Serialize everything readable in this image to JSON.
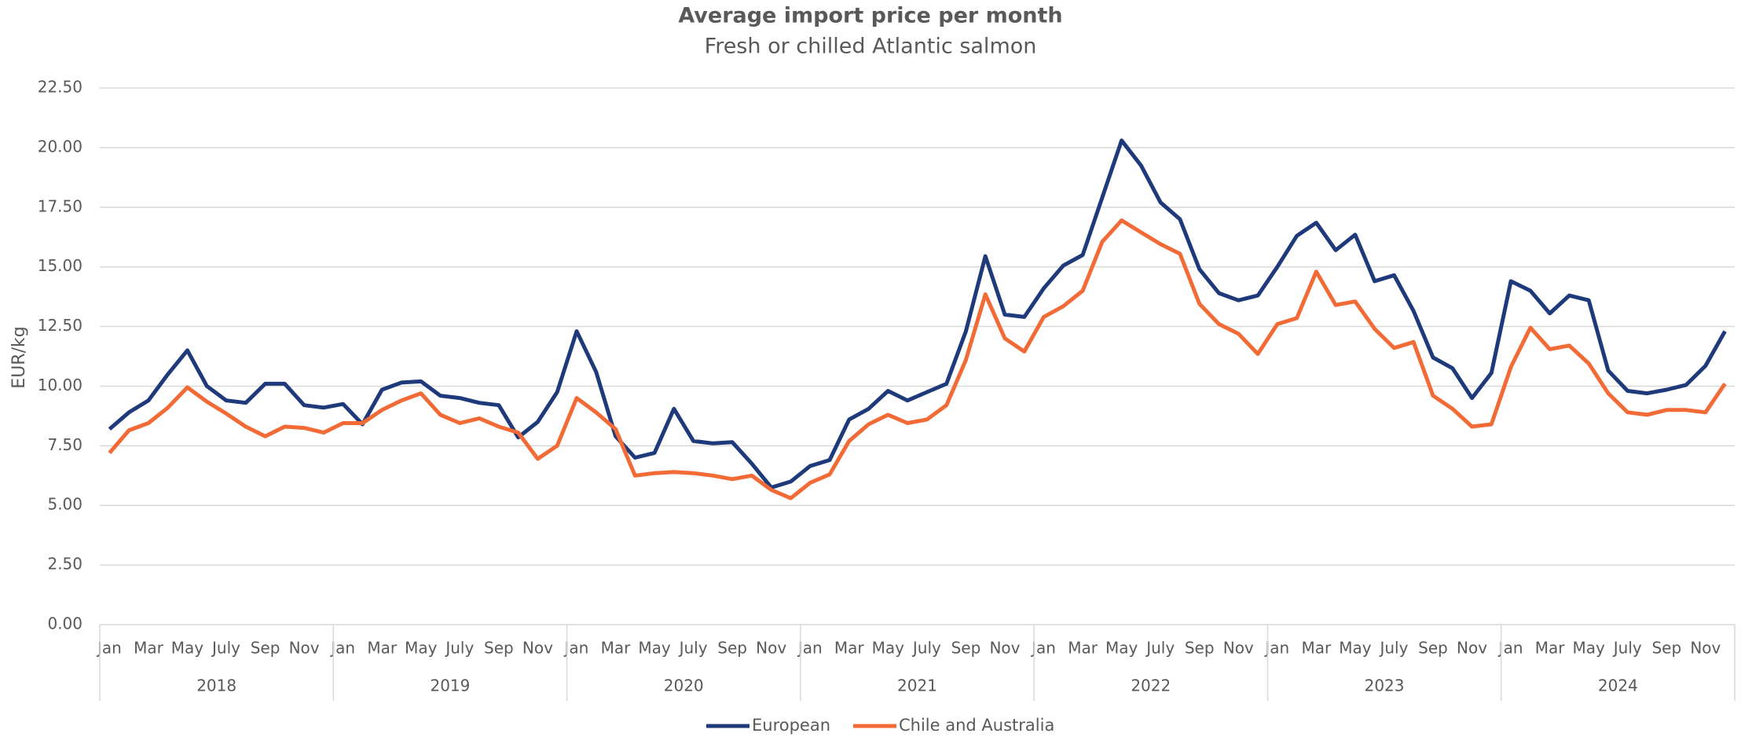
{
  "chart_data": {
    "type": "line",
    "title": "Average import price per month",
    "subtitle": "Fresh or chilled Atlantic salmon",
    "y_label": "EUR/kg",
    "categories": [
      "Jan",
      null,
      "Mar",
      null,
      "May",
      null,
      "July",
      null,
      "Sep",
      null,
      "Nov",
      null,
      "Jan",
      null,
      "Mar",
      null,
      "May",
      null,
      "July",
      null,
      "Sep",
      null,
      "Nov",
      null,
      "Jan",
      null,
      "Mar",
      null,
      "May",
      null,
      "July",
      null,
      "Sep",
      null,
      "Nov",
      null,
      "Jan",
      null,
      "Mar",
      null,
      "May",
      null,
      "July",
      null,
      "Sep",
      null,
      "Nov",
      null,
      "Jan",
      null,
      "Mar",
      null,
      "May",
      null,
      "July",
      null,
      "Sep",
      null,
      "Nov",
      null,
      "Jan",
      null,
      "Mar",
      null,
      "May",
      null,
      "July",
      null,
      "Sep",
      null,
      "Nov",
      null,
      "Jan",
      null,
      "Mar",
      null,
      "May",
      null,
      "July",
      null,
      "Sep",
      null,
      "Nov",
      null
    ],
    "years": [
      "2018",
      "2019",
      "2020",
      "2021",
      "2022",
      "2023",
      "2024"
    ],
    "series": [
      {
        "name": "European",
        "color": "#1f3a7a",
        "values": [
          8.2,
          8.9,
          9.4,
          10.5,
          11.5,
          10.0,
          9.4,
          9.3,
          10.1,
          10.1,
          9.2,
          9.1,
          9.25,
          8.4,
          9.85,
          10.15,
          10.2,
          9.6,
          9.5,
          9.3,
          9.2,
          7.85,
          8.5,
          9.75,
          12.3,
          10.6,
          7.9,
          7.0,
          7.2,
          9.05,
          7.7,
          7.6,
          7.65,
          6.75,
          5.75,
          6.0,
          6.65,
          6.9,
          8.6,
          9.05,
          9.8,
          9.4,
          9.75,
          10.1,
          12.3,
          15.45,
          13.0,
          12.9,
          14.1,
          15.05,
          15.5,
          17.9,
          20.3,
          19.25,
          17.7,
          17.0,
          14.9,
          13.9,
          13.6,
          13.8,
          15.0,
          16.3,
          16.85,
          15.7,
          16.35,
          14.4,
          14.65,
          13.15,
          11.2,
          10.75,
          9.5,
          10.55,
          14.4,
          14.0,
          13.05,
          13.8,
          13.6,
          10.65,
          9.8,
          9.7,
          9.85,
          10.05,
          10.85,
          12.3
        ]
      },
      {
        "name": "Chile and Australia",
        "color": "#f26a35",
        "values": [
          7.2,
          8.15,
          8.45,
          9.1,
          9.95,
          9.35,
          8.85,
          8.3,
          7.9,
          8.3,
          8.25,
          8.05,
          8.45,
          8.45,
          9.0,
          9.4,
          9.7,
          8.8,
          8.45,
          8.65,
          8.3,
          8.05,
          6.95,
          7.5,
          9.5,
          8.9,
          8.2,
          6.25,
          6.35,
          6.4,
          6.35,
          6.25,
          6.1,
          6.25,
          5.65,
          5.3,
          5.95,
          6.3,
          7.7,
          8.4,
          8.8,
          8.45,
          8.6,
          9.2,
          11.1,
          13.85,
          12.0,
          11.45,
          12.9,
          13.35,
          14.0,
          16.05,
          16.95,
          16.45,
          15.95,
          15.55,
          13.45,
          12.6,
          12.2,
          11.35,
          12.6,
          12.85,
          14.8,
          13.4,
          13.55,
          12.4,
          11.6,
          11.85,
          9.6,
          9.05,
          8.3,
          8.4,
          10.8,
          12.45,
          11.55,
          11.7,
          10.95,
          9.7,
          8.9,
          8.8,
          9.0,
          9.0,
          8.9,
          10.1
        ]
      }
    ],
    "ylim": [
      0,
      22.5
    ],
    "yticks": [
      {
        "value": 0,
        "label": "0.00"
      },
      {
        "value": 2.5,
        "label": "2.50"
      },
      {
        "value": 5,
        "label": "5.00"
      },
      {
        "value": 7.5,
        "label": "7.50"
      },
      {
        "value": 10,
        "label": "10.00"
      },
      {
        "value": 12.5,
        "label": "12.50"
      },
      {
        "value": 15,
        "label": "15.00"
      },
      {
        "value": 17.5,
        "label": "17.50"
      },
      {
        "value": 20,
        "label": "20.00"
      },
      {
        "value": 22.5,
        "label": "22.50"
      }
    ],
    "grid": true,
    "legend": "bottom"
  }
}
